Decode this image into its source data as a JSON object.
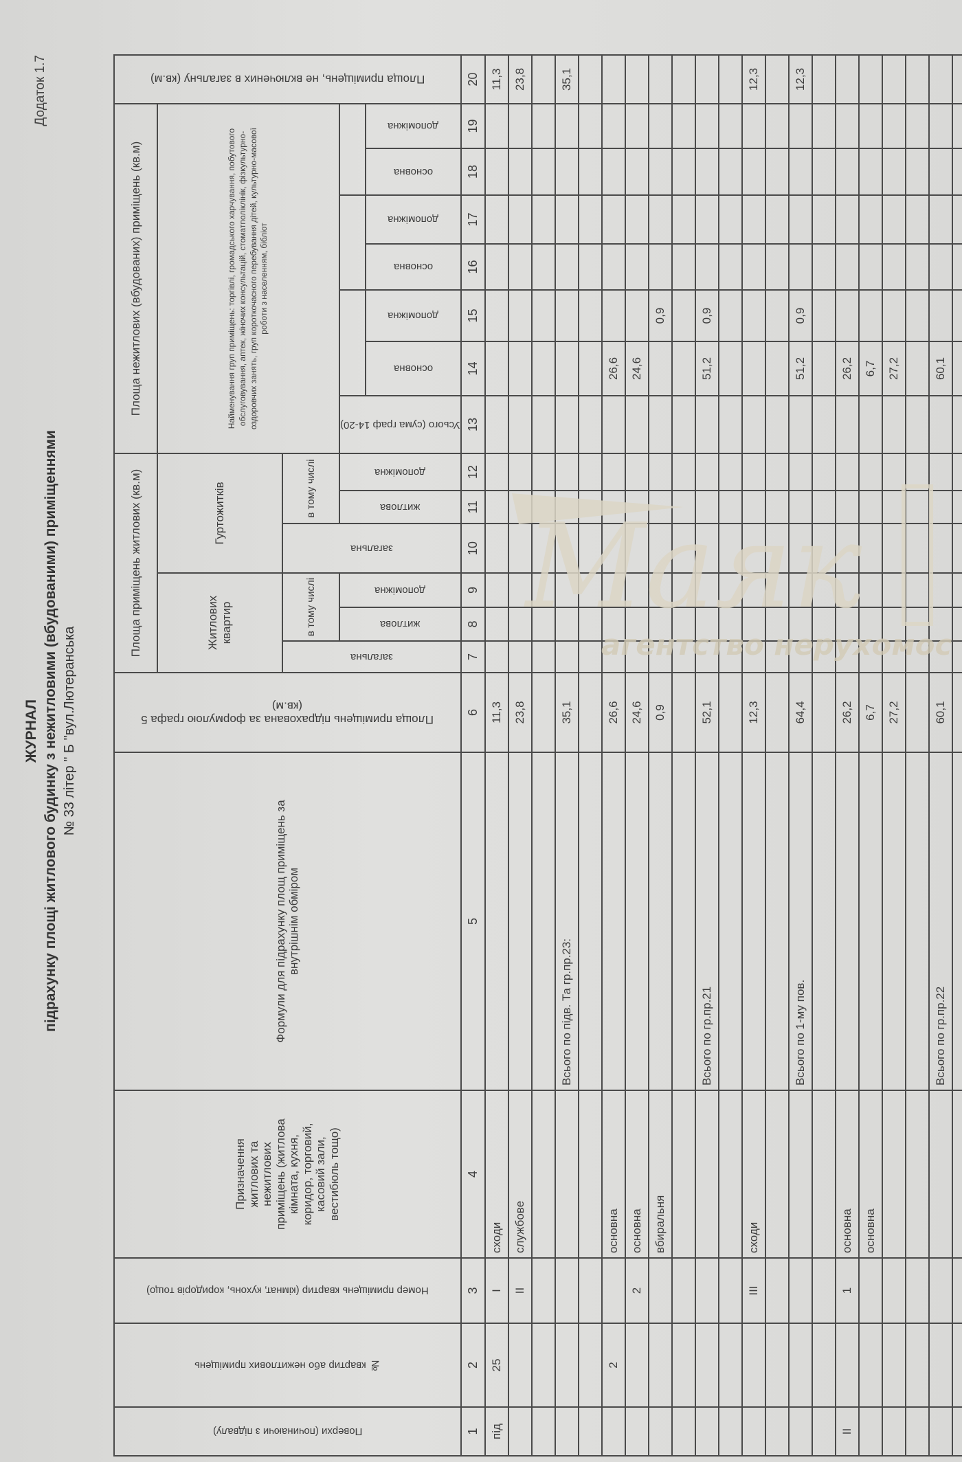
{
  "document": {
    "title": "ЖУРНАЛ",
    "subtitle": "підрахунку площі житлового будинку з нежитловими (вбудованими) приміщеннями",
    "address": "№ 33 літер \" Б \"вул.Лютеранська",
    "appendix": "Додаток 1.7"
  },
  "headers": {
    "c1": "Поверхи (починаючи з підвалу)",
    "c2": "№ квартир або нежитлових приміщень",
    "c3": "Номер приміщень квартир (кімнат, кухонь, коридорів тощо)",
    "c4": "Призначення житлових та нежитлових приміщень (житлова кімната, кухня, коридор, торговий, касовий зали, вестибюль тощо)",
    "c5": "Формули для підрахунку площ приміщень за внутрішнім обміром",
    "c6": "Площа приміщень підрахована за формулою графа 5 (кв.м)",
    "residential": "Площа приміщень житлових (кв.м)",
    "apartments": "Житлових квартир",
    "dormitories": "Гуртожитків",
    "total": "загальна",
    "including": "в тому числі",
    "living": "житлова",
    "auxiliary_f": "допоміжна",
    "nonresidential": "Площа нежитлових (вбудованих) приміщень (кв.м)",
    "groups": "Найменування груп приміщень: торгівлі, громадського харчування, побутового обслуговування, аптек, жіночих консультацій, стоматполіклінік, фізкультурно-оздоровчих занять, груп короткочасного перебування дітей, культурно-масової роботи з населенням, бібліот",
    "c13": "Усього (сума граф 14-20)",
    "main": "основна",
    "auxiliary": "допоміжна",
    "c20": "Площа приміщень, не включених в загальну (кв.м)"
  },
  "column_numbers": [
    "1",
    "2",
    "3",
    "4",
    "5",
    "6",
    "7",
    "8",
    "9",
    "10",
    "11",
    "12",
    "13",
    "14",
    "15",
    "16",
    "17",
    "18",
    "19",
    "20"
  ],
  "rows": [
    {
      "1": "під",
      "2": "25",
      "3": "I",
      "4": "сходи",
      "6": "11,3",
      "20": "11,3"
    },
    {
      "3": "II",
      "4": "службове",
      "6": "23,8",
      "20": "23,8"
    },
    {},
    {
      "5": "Всього по підв. Та гр.пр.23:",
      "6": "35,1",
      "20": "35,1"
    },
    {},
    {
      "2": "2",
      "4": "основна",
      "6": "26,6",
      "14": "26,6"
    },
    {
      "3": "2",
      "4": "основна",
      "6": "24,6",
      "14": "24,6"
    },
    {
      "4": "вбиральня",
      "6": "0,9",
      "15": "0,9"
    },
    {},
    {
      "5": "Всього по гр.пр.21",
      "6": "52,1",
      "14": "51,2",
      "15": "0,9"
    },
    {},
    {
      "3": "III",
      "4": "сходи",
      "6": "12,3",
      "20": "12,3"
    },
    {},
    {
      "5": "Всього по 1-му пов.",
      "6": "64,4",
      "14": "51,2",
      "15": "0,9",
      "20": "12,3"
    },
    {},
    {
      "1": "II",
      "3": "1",
      "4": "основна",
      "6": "26,2",
      "14": "26,2"
    },
    {
      "4": "основна",
      "6": "6,7",
      "14": "6,7"
    },
    {
      "6": "27,2",
      "14": "27,2"
    },
    {},
    {
      "5": "Всього по гр.пр.22",
      "6": "60,1",
      "14": "60,1"
    },
    {}
  ],
  "watermark": {
    "brand": "Маяк",
    "tagline": "агентство нерухомості",
    "color": "#d8d2c2"
  }
}
